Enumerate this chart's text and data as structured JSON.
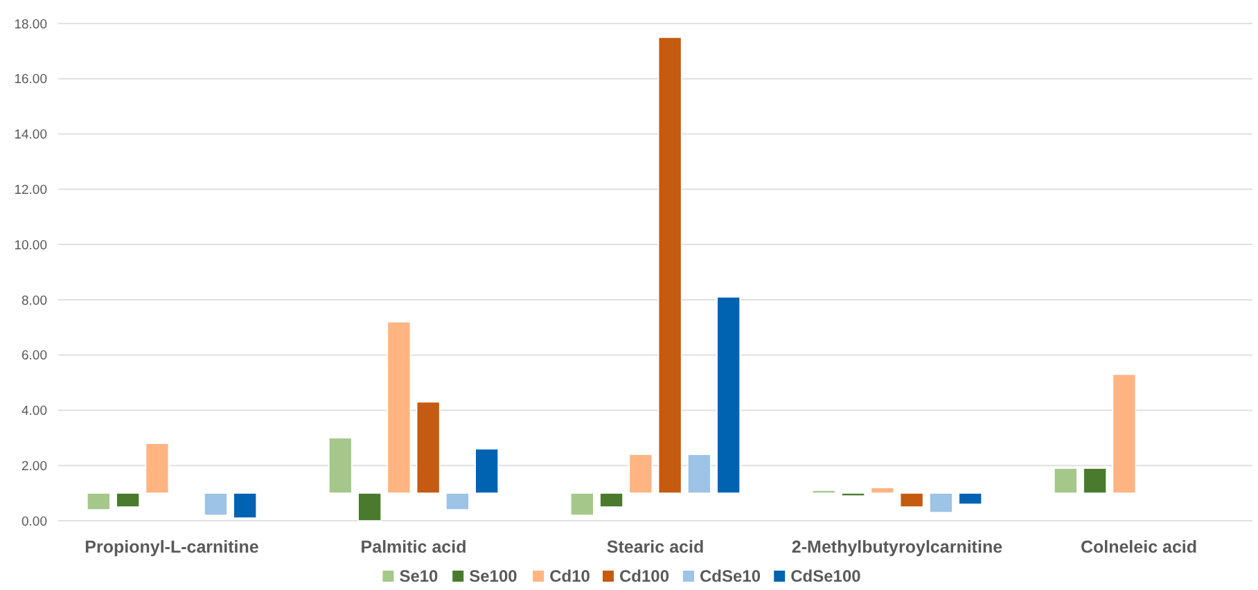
{
  "chart_data": {
    "type": "bar",
    "categories": [
      "Propionyl-L-carnitine",
      "Palmitic acid",
      "Stearic acid",
      "2-Methylbutyroylcarnitine",
      "Colneleic acid"
    ],
    "series": [
      {
        "name": "Se10",
        "color": "#a5c88a",
        "base": [
          1,
          1,
          1,
          1,
          1
        ],
        "values": [
          -0.6,
          2.0,
          -0.8,
          0.1,
          0.9
        ]
      },
      {
        "name": "Se100",
        "color": "#4a7a2e",
        "base": [
          1,
          1,
          1,
          1,
          1
        ],
        "values": [
          -0.5,
          -1.0,
          -0.5,
          -0.1,
          0.9
        ]
      },
      {
        "name": "Cd10",
        "color": "#ffb482",
        "base": [
          1,
          1,
          1,
          1,
          1
        ],
        "values": [
          1.8,
          6.2,
          1.4,
          0.2,
          4.3
        ]
      },
      {
        "name": "Cd100",
        "color": "#c55a11",
        "base": [
          null,
          1,
          1,
          1,
          null
        ],
        "values": [
          null,
          3.3,
          16.5,
          -0.5,
          null
        ]
      },
      {
        "name": "CdSe10",
        "color": "#9dc3e6",
        "base": [
          1,
          1,
          1,
          1,
          null
        ],
        "values": [
          -0.8,
          -0.6,
          1.4,
          -0.7,
          null
        ]
      },
      {
        "name": "CdSe100",
        "color": "#0063b1",
        "base": [
          1,
          1,
          1,
          1,
          null
        ],
        "values": [
          -0.9,
          1.6,
          7.1,
          -0.4,
          null
        ]
      }
    ],
    "ylim": [
      0,
      18
    ],
    "yticks": [
      {
        "value": 0,
        "label": "0.00"
      },
      {
        "value": 2,
        "label": "2.00"
      },
      {
        "value": 4,
        "label": "4.00"
      },
      {
        "value": 6,
        "label": "6.00"
      },
      {
        "value": 8,
        "label": "8.00"
      },
      {
        "value": 10,
        "label": "10.00"
      },
      {
        "value": 12,
        "label": "12.00"
      },
      {
        "value": 14,
        "label": "14.00"
      },
      {
        "value": 16,
        "label": "16.00"
      },
      {
        "value": 18,
        "label": "18.00"
      }
    ],
    "grid": "y",
    "legend": "bottom"
  }
}
